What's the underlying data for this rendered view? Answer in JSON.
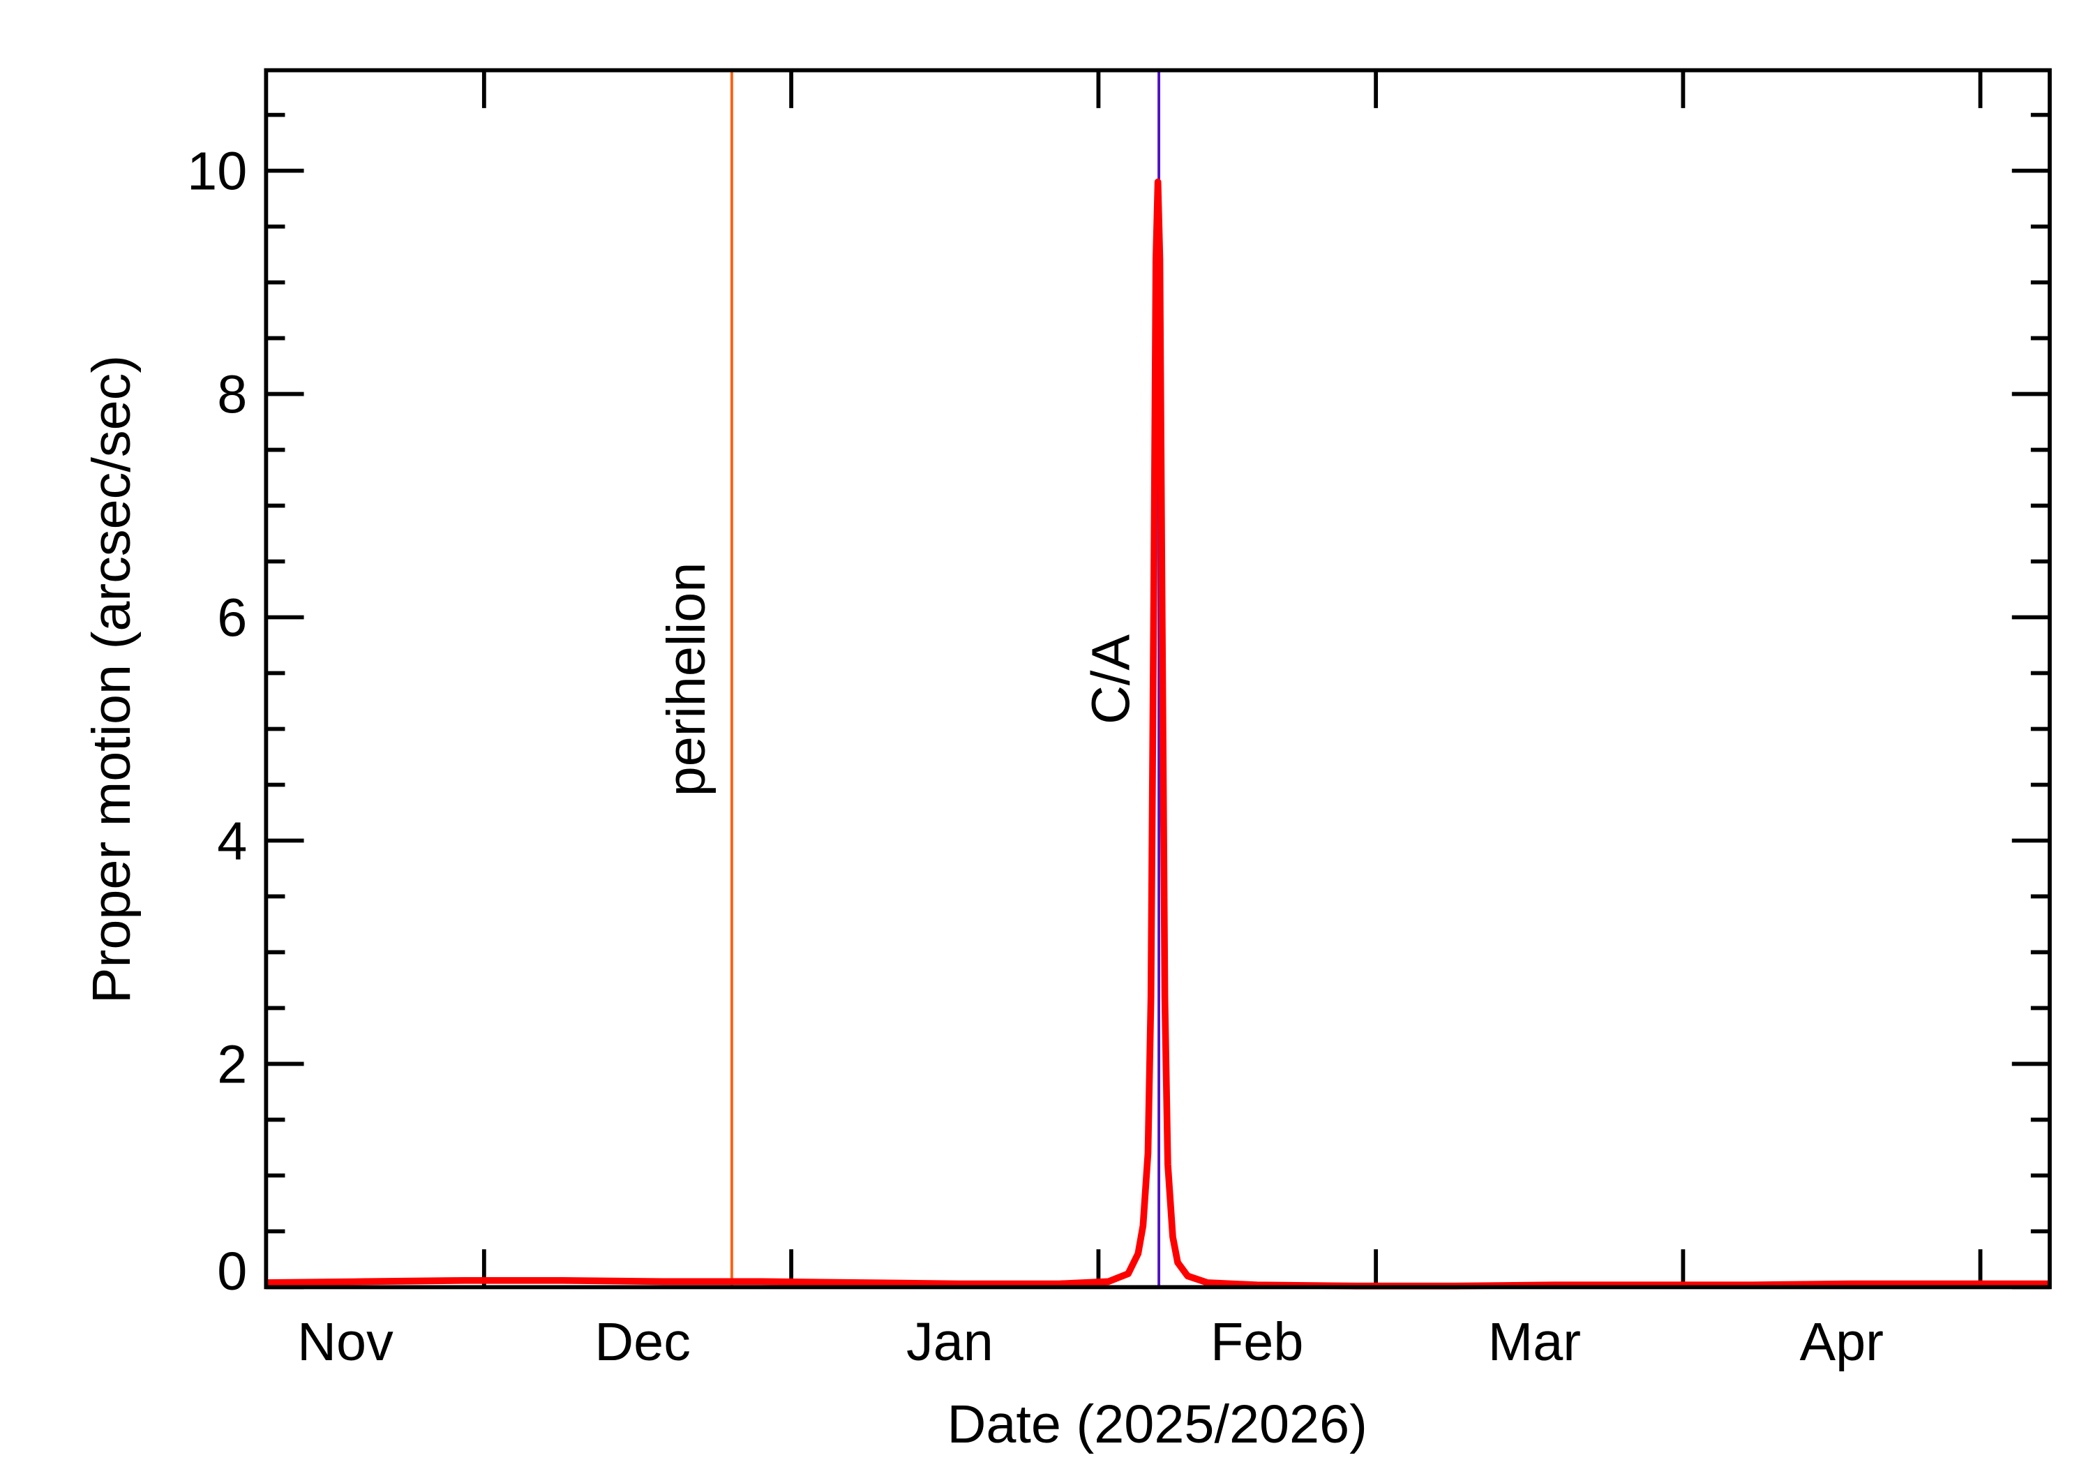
{
  "chart_data": {
    "type": "line",
    "xlabel": "Date (2025/2026)",
    "ylabel": "Proper motion (arcsec/sec)",
    "x": [
      0,
      10,
      20,
      30,
      40,
      50,
      60,
      70,
      80,
      85,
      87,
      88,
      88.5,
      89,
      89.3,
      89.6,
      89.8,
      90,
      90.2,
      90.4,
      90.7,
      91,
      91.5,
      92,
      93,
      95,
      100,
      110,
      120,
      130,
      140,
      150,
      160,
      170,
      180
    ],
    "values": [
      0.04,
      0.05,
      0.06,
      0.06,
      0.05,
      0.05,
      0.04,
      0.03,
      0.03,
      0.05,
      0.12,
      0.3,
      0.55,
      1.2,
      2.6,
      6.4,
      9.2,
      9.9,
      9.2,
      6.4,
      2.6,
      1.1,
      0.45,
      0.22,
      0.1,
      0.04,
      0.02,
      0.01,
      0.01,
      0.02,
      0.02,
      0.02,
      0.03,
      0.03,
      0.03
    ],
    "color": "#ff0000",
    "xlim": [
      0,
      180
    ],
    "xticks": [
      {
        "value": 8,
        "label": "Nov"
      },
      {
        "value": 38,
        "label": "Dec"
      },
      {
        "value": 69,
        "label": "Jan"
      },
      {
        "value": 100,
        "label": "Feb"
      },
      {
        "value": 128,
        "label": "Mar"
      },
      {
        "value": 159,
        "label": "Apr"
      }
    ],
    "xtick_marks": [
      22,
      53,
      84,
      112,
      143,
      173
    ],
    "ylim": [
      0,
      10.9
    ],
    "yticks": [
      0,
      2,
      4,
      6,
      8,
      10
    ],
    "yminorticks": [
      0.5,
      1,
      1.5,
      2.5,
      3,
      3.5,
      4.5,
      5,
      5.5,
      6.5,
      7,
      7.5,
      8.5,
      9,
      9.5,
      10.5
    ],
    "annotations": [
      {
        "text": "perihelion",
        "x": 47,
        "color": "#ff6010"
      },
      {
        "text": "C/A",
        "x": 90.1,
        "color": "#5010c8"
      }
    ]
  }
}
